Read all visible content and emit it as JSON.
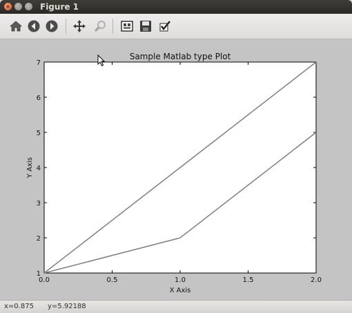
{
  "window": {
    "title": "Figure 1"
  },
  "toolbar": {
    "buttons": [
      {
        "name": "home",
        "icon": "home-icon"
      },
      {
        "name": "back",
        "icon": "back-arrow-icon"
      },
      {
        "name": "forward",
        "icon": "forward-arrow-icon"
      },
      {
        "name": "pan",
        "icon": "pan-move-icon"
      },
      {
        "name": "zoom",
        "icon": "zoom-icon"
      },
      {
        "name": "subplots",
        "icon": "configure-subplots-icon"
      },
      {
        "name": "save",
        "icon": "save-disk-icon"
      },
      {
        "name": "edit",
        "icon": "edit-checkmark-icon"
      }
    ]
  },
  "chart_data": {
    "type": "line",
    "title": "Sample Matlab type Plot",
    "xlabel": "X Axis",
    "ylabel": "Y Axis",
    "xlim": [
      0.0,
      2.0
    ],
    "ylim": [
      1,
      7
    ],
    "xticks": [
      "0.0",
      "0.5",
      "1.0",
      "1.5",
      "2.0"
    ],
    "yticks": [
      "1",
      "2",
      "3",
      "4",
      "5",
      "6",
      "7"
    ],
    "grid": false,
    "line_color": "#7f7f7f",
    "series": [
      {
        "x": [
          0,
          1,
          2
        ],
        "y": [
          1,
          4,
          7
        ]
      },
      {
        "x": [
          0,
          1,
          2
        ],
        "y": [
          1,
          2,
          5
        ]
      }
    ]
  },
  "status": {
    "x_readout": "x=0.875",
    "y_readout": "y=5.92188"
  }
}
